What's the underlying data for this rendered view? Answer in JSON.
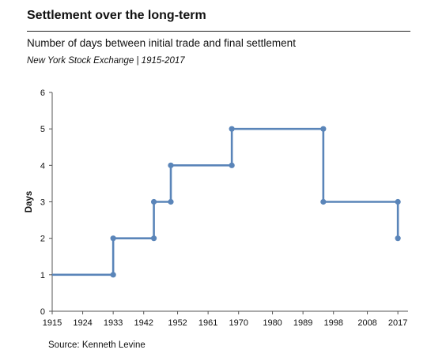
{
  "header": {
    "title": "Settlement over the long-term",
    "subtitle": "Number of days between initial trade and final settlement",
    "note": "New York Stock Exchange | 1915-2017"
  },
  "footer": {
    "source": "Source: Kenneth Levine"
  },
  "colors": {
    "series": "#5a85b9",
    "axis": "#555555",
    "text": "#111111"
  },
  "chart_data": {
    "type": "line",
    "step": "post",
    "title": "Settlement over the long-term",
    "subtitle": "Number of days between initial trade and final settlement",
    "xlabel": "",
    "ylabel": "Days",
    "xlim": [
      1915,
      2020
    ],
    "ylim": [
      0,
      6
    ],
    "xticks": [
      1915,
      1924,
      1933,
      1942,
      1952,
      1961,
      1970,
      1980,
      1989,
      1998,
      2008,
      2017
    ],
    "yticks": [
      0,
      1,
      2,
      3,
      4,
      5,
      6
    ],
    "grid": false,
    "legend": "none",
    "series": [
      {
        "x": [
          1933,
          1945,
          1950,
          1968,
          1995,
          2017
        ],
        "y": [
          2,
          3,
          4,
          5,
          3,
          2
        ]
      }
    ],
    "start": {
      "x": 1915,
      "y": 1
    },
    "initial_value": 1
  }
}
